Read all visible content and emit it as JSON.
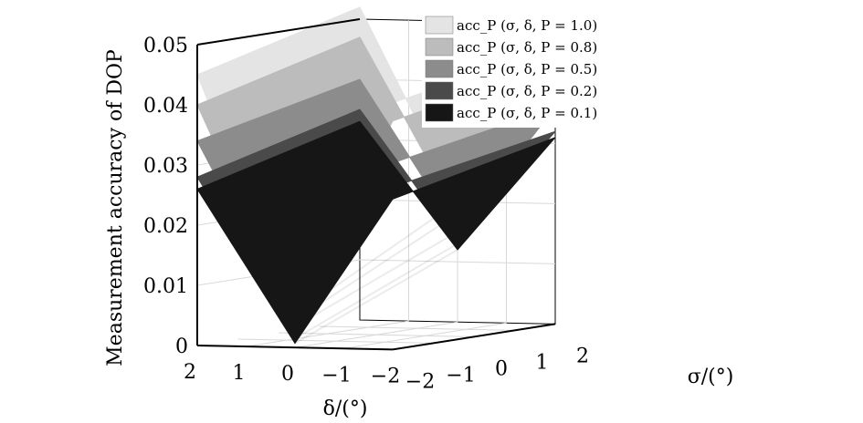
{
  "chart_data": {
    "type": "surface",
    "ylabel": "Measurement accuracy of DOP",
    "xlabel": "δ/(°)",
    "zlabel": "σ/(°)",
    "x_ticks": [
      "2",
      "1",
      "0",
      "−1",
      "−2"
    ],
    "z_ticks": [
      "−2",
      "−1",
      "0",
      "1",
      "2"
    ],
    "y_ticks": [
      "0",
      "0.01",
      "0.02",
      "0.03",
      "0.04",
      "0.05"
    ],
    "xlim": [
      -2,
      2
    ],
    "zlim": [
      -2,
      2
    ],
    "ylim": [
      0,
      0.05
    ],
    "grid": true,
    "legend_position": "top-right",
    "series": [
      {
        "name": "acc_P (σ, δ, P = 1.0)",
        "color": "#e4e4e4",
        "at_delta_2_sigma_-2": 0.045,
        "at_delta_0_sigma_-2": 0.0055,
        "at_delta_-2_sigma_-2": 0.041,
        "at_delta_2_sigma_2": 0.052,
        "at_delta_0_sigma_2": 0.02,
        "at_delta_-2_sigma_2": 0.046
      },
      {
        "name": "acc_P (σ, δ, P = 0.8)",
        "color": "#bcbcbc",
        "at_delta_2_sigma_-2": 0.04,
        "at_delta_0_sigma_-2": 0.0045,
        "at_delta_-2_sigma_-2": 0.038,
        "at_delta_2_sigma_2": 0.047,
        "at_delta_0_sigma_2": 0.018,
        "at_delta_-2_sigma_2": 0.043
      },
      {
        "name": "acc_P (σ, δ, P = 0.5)",
        "color": "#8c8c8c",
        "at_delta_2_sigma_-2": 0.034,
        "at_delta_0_sigma_-2": 0.0035,
        "at_delta_-2_sigma_-2": 0.031,
        "at_delta_2_sigma_2": 0.04,
        "at_delta_0_sigma_2": 0.015,
        "at_delta_-2_sigma_2": 0.036
      },
      {
        "name": "acc_P (σ, δ, P = 0.2)",
        "color": "#4a4a4a",
        "at_delta_2_sigma_-2": 0.028,
        "at_delta_0_sigma_-2": 0.0015,
        "at_delta_-2_sigma_-2": 0.027,
        "at_delta_2_sigma_2": 0.035,
        "at_delta_0_sigma_2": 0.013,
        "at_delta_-2_sigma_2": 0.032
      },
      {
        "name": "acc_P (σ, δ, P = 0.1)",
        "color": "#161616",
        "at_delta_2_sigma_-2": 0.026,
        "at_delta_0_sigma_-2": 0.0007,
        "at_delta_-2_sigma_-2": 0.025,
        "at_delta_2_sigma_2": 0.033,
        "at_delta_0_sigma_2": 0.012,
        "at_delta_-2_sigma_2": 0.031
      }
    ]
  }
}
